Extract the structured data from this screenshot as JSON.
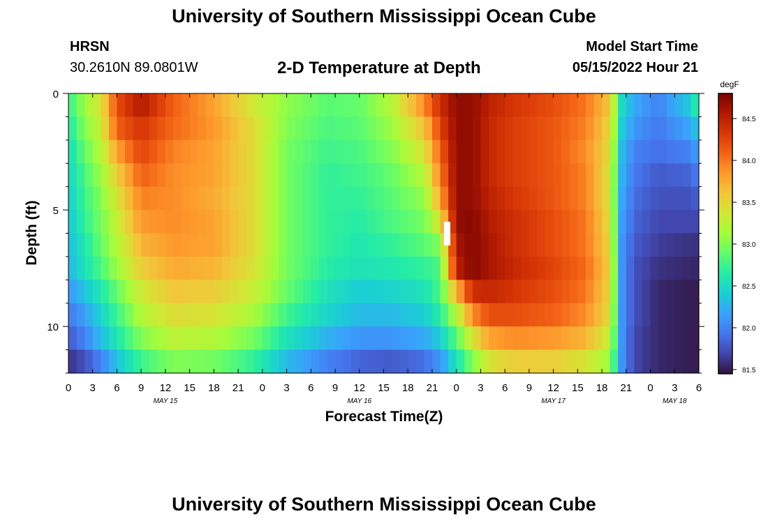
{
  "header": {
    "title": "University of Southern Mississippi Ocean Cube",
    "station": "HRSN",
    "coords": "30.2610N  89.0801W",
    "subtitle": "2-D Temperature at Depth",
    "start_label": "Model Start Time",
    "start_value": "05/15/2022 Hour 21"
  },
  "footer": {
    "title": "University of Southern Mississippi Ocean Cube"
  },
  "chart_data": {
    "type": "heatmap",
    "title": "2-D Temperature at Depth",
    "xlabel": "Forecast Time(Z)",
    "ylabel": "Depth (ft)",
    "x_hours": [
      0,
      3,
      6,
      9,
      12,
      15,
      18,
      21,
      24,
      27,
      30,
      33,
      36,
      39,
      42,
      45,
      48,
      51,
      54,
      57,
      60,
      63,
      66,
      69,
      72,
      75,
      78
    ],
    "x_tick_labels": [
      "0",
      "3",
      "6",
      "9",
      "12",
      "15",
      "18",
      "21",
      "0",
      "3",
      "6",
      "9",
      "12",
      "15",
      "18",
      "21",
      "0",
      "3",
      "6",
      "9",
      "12",
      "15",
      "18",
      "21",
      "0",
      "3",
      "6"
    ],
    "x_range_hours": [
      0,
      78
    ],
    "date_labels": [
      {
        "label": "MAY 15",
        "hour": 12
      },
      {
        "label": "MAY 16",
        "hour": 36
      },
      {
        "label": "MAY 17",
        "hour": 60
      },
      {
        "label": "MAY 18",
        "hour": 75
      }
    ],
    "y_range": [
      0,
      12
    ],
    "y_ticks": [
      0,
      5,
      10
    ],
    "y_tick_labels": [
      "0",
      "5",
      "10"
    ],
    "colorbar": {
      "unit": "degF",
      "range": [
        81.45,
        84.8
      ],
      "ticks": [
        81.5,
        82.0,
        82.5,
        83.0,
        83.5,
        84.0,
        84.5
      ],
      "tick_labels": [
        "81.5",
        "82.0",
        "82.5",
        "83.0",
        "83.5",
        "84.0",
        "84.5"
      ],
      "colors": [
        "#30123b",
        "#4145ab",
        "#4675ed",
        "#39a2fc",
        "#1bcfd4",
        "#24eca6",
        "#61fc6c",
        "#a4fc3b",
        "#d1e834",
        "#f3c63a",
        "#fe9b2d",
        "#f36315",
        "#d93806",
        "#b11901",
        "#7a0402"
      ]
    },
    "row_depths": [
      0.5,
      1.5,
      2.5,
      3.5,
      4.5,
      5.5,
      6.5,
      7.5,
      8.5,
      9.5,
      10.5,
      11.5
    ],
    "cell_hours": 1,
    "anchor_hours": [
      0,
      2,
      4,
      6,
      9,
      13,
      18,
      23,
      27,
      32,
      36,
      40,
      44,
      46,
      48,
      50,
      52,
      55,
      60,
      64,
      67,
      68.5,
      70,
      73,
      77,
      78
    ],
    "temperature_anchors_degF": [
      [
        82.7,
        83.1,
        83.4,
        84.2,
        84.55,
        84.1,
        83.8,
        83.35,
        83.05,
        82.85,
        82.9,
        83.2,
        83.9,
        84.4,
        84.7,
        84.7,
        84.5,
        84.35,
        84.2,
        84.0,
        83.6,
        82.5,
        82.2,
        82.0,
        82.4,
        82.8
      ],
      [
        82.6,
        83.0,
        83.3,
        84.1,
        84.35,
        84.05,
        83.85,
        83.45,
        83.0,
        82.8,
        82.85,
        83.1,
        83.6,
        84.25,
        84.7,
        84.7,
        84.45,
        84.3,
        84.15,
        83.95,
        83.5,
        82.4,
        82.1,
        81.95,
        82.2,
        82.4
      ],
      [
        82.5,
        82.9,
        83.2,
        83.8,
        84.25,
        83.95,
        83.8,
        83.45,
        82.95,
        82.75,
        82.8,
        83.0,
        83.4,
        84.1,
        84.7,
        84.7,
        84.45,
        84.3,
        84.15,
        83.9,
        83.45,
        82.3,
        82.0,
        81.9,
        82.0,
        82.2
      ],
      [
        82.45,
        82.8,
        83.1,
        83.55,
        84.1,
        83.9,
        83.8,
        83.45,
        82.95,
        82.7,
        82.75,
        82.9,
        83.2,
        83.95,
        84.7,
        84.7,
        84.45,
        84.3,
        84.15,
        83.95,
        83.4,
        82.25,
        81.95,
        81.8,
        81.85,
        82.0
      ],
      [
        82.4,
        82.75,
        83.0,
        83.4,
        83.95,
        83.9,
        83.75,
        83.45,
        82.95,
        82.7,
        82.7,
        82.85,
        83.05,
        83.75,
        84.7,
        84.7,
        84.5,
        84.35,
        84.15,
        83.95,
        83.4,
        82.2,
        81.9,
        81.75,
        81.75,
        81.85
      ],
      [
        82.35,
        82.7,
        82.95,
        83.3,
        83.85,
        83.9,
        83.8,
        83.45,
        82.95,
        82.7,
        82.65,
        82.8,
        82.95,
        83.4,
        84.7,
        84.75,
        84.55,
        84.4,
        84.2,
        84.0,
        83.45,
        82.15,
        81.85,
        81.7,
        81.7,
        81.7
      ],
      [
        82.3,
        82.6,
        82.9,
        83.2,
        83.7,
        83.85,
        83.8,
        83.45,
        82.95,
        82.7,
        82.6,
        82.7,
        82.85,
        83.0,
        84.6,
        84.75,
        84.6,
        84.4,
        84.2,
        84.0,
        83.5,
        82.1,
        81.8,
        81.65,
        81.6,
        81.6
      ],
      [
        82.25,
        82.55,
        82.8,
        83.1,
        83.55,
        83.75,
        83.7,
        83.4,
        82.95,
        82.65,
        82.55,
        82.6,
        82.7,
        82.8,
        84.5,
        84.75,
        84.6,
        84.45,
        84.25,
        84.05,
        83.55,
        82.1,
        81.75,
        81.6,
        81.55,
        81.55
      ],
      [
        82.1,
        82.35,
        82.6,
        82.9,
        83.35,
        83.6,
        83.55,
        83.3,
        82.9,
        82.55,
        82.4,
        82.45,
        82.55,
        82.8,
        83.7,
        84.4,
        84.45,
        84.35,
        84.2,
        84.0,
        83.5,
        82.1,
        81.75,
        81.55,
        81.5,
        81.5
      ],
      [
        81.95,
        82.15,
        82.45,
        82.75,
        83.2,
        83.45,
        83.4,
        83.15,
        82.75,
        82.45,
        82.3,
        82.3,
        82.4,
        82.65,
        83.2,
        83.9,
        84.2,
        84.2,
        84.1,
        83.9,
        83.45,
        82.1,
        81.75,
        81.55,
        81.5,
        81.5
      ],
      [
        81.8,
        82.0,
        82.3,
        82.6,
        83.0,
        83.25,
        83.2,
        82.95,
        82.55,
        82.25,
        82.1,
        82.1,
        82.2,
        82.4,
        82.85,
        83.4,
        83.8,
        83.9,
        83.85,
        83.7,
        83.3,
        82.1,
        81.7,
        81.55,
        81.5,
        81.5
      ],
      [
        81.6,
        81.75,
        82.0,
        82.35,
        82.75,
        83.0,
        82.95,
        82.7,
        82.3,
        82.0,
        81.85,
        81.8,
        81.9,
        82.1,
        82.55,
        83.0,
        83.4,
        83.55,
        83.55,
        83.4,
        83.1,
        82.1,
        81.7,
        81.55,
        81.5,
        81.5
      ]
    ]
  }
}
